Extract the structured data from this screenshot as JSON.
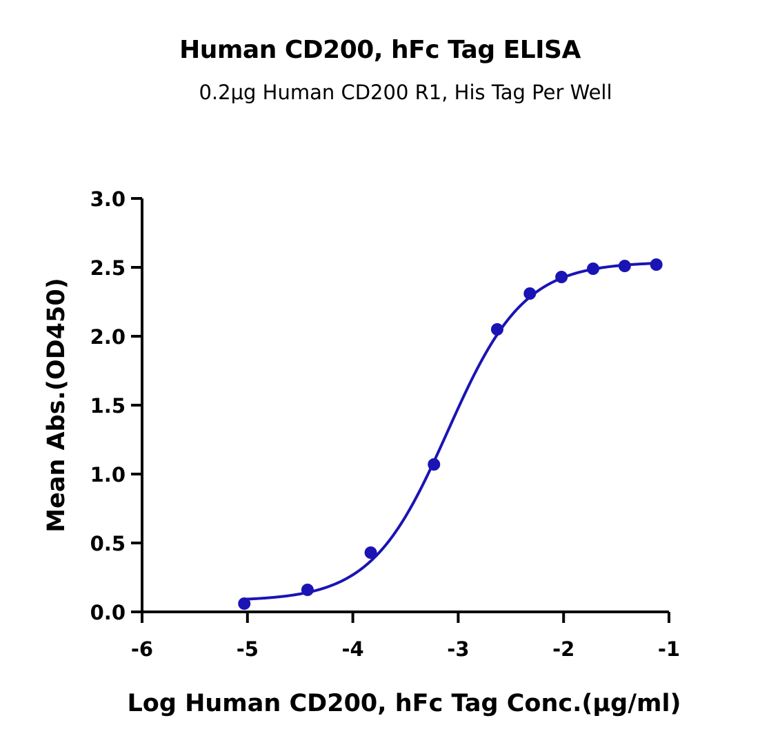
{
  "chart_data": {
    "type": "scatter",
    "title": "Human CD200, hFc Tag ELISA",
    "subtitle": "0.2μg Human CD200 R1, His Tag Per Well",
    "xlabel": "Log Human CD200, hFc Tag Conc.(μg/ml)",
    "ylabel": "Mean Abs.(OD450)",
    "xlim": [
      -6,
      -1
    ],
    "ylim": [
      0,
      3.0
    ],
    "x_ticks": [
      "-6",
      "-5",
      "-4",
      "-3",
      "-2",
      "-1"
    ],
    "y_ticks": [
      "0.0",
      "0.5",
      "1.0",
      "1.5",
      "2.0",
      "2.5",
      "3.0"
    ],
    "grid": false,
    "series": [
      {
        "color": "#1a14b4",
        "x": [
          -5.03,
          -4.43,
          -3.83,
          -3.23,
          -2.63,
          -2.32,
          -2.02,
          -1.72,
          -1.42,
          -1.12
        ],
        "y": [
          0.06,
          0.16,
          0.43,
          1.07,
          2.05,
          2.31,
          2.43,
          2.49,
          2.51,
          2.52
        ]
      }
    ],
    "fit_curve": {
      "type": "4PL",
      "bottom": 0.08,
      "top": 2.54,
      "log_ec50": -3.1,
      "hill_slope": 1.2
    }
  }
}
